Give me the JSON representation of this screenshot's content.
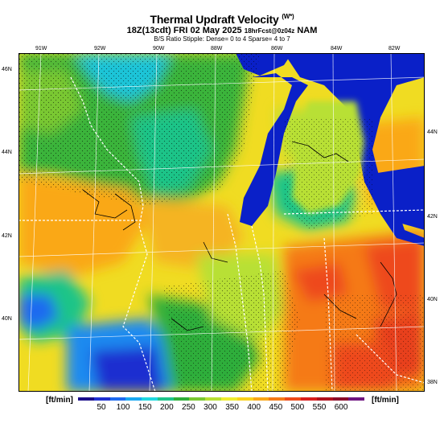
{
  "header": {
    "title": "Thermal Updraft Velocity",
    "title_unit": "(W*)",
    "subtitle_time": "18Z(13cdt) FRI 02 May 2025",
    "subtitle_fcst": "18hrFcst@0z04z",
    "subtitle_model": "NAM",
    "line3": "B/S Ratio Stipple: Dense= 0 to 4  Sparse= 4 to 7"
  },
  "map": {
    "longitudes": [
      "91W",
      "92W",
      "90W",
      "88W",
      "86W",
      "84W",
      "82W"
    ],
    "latitudes": [
      "46N",
      "44N",
      "42N",
      "40N",
      "38N"
    ],
    "right_labels": [
      "44N",
      "42N",
      "40N",
      "38N"
    ]
  },
  "legend": {
    "unit_left": "[ft/min]",
    "unit_right": "[ft/min]",
    "ticks": [
      "50",
      "100",
      "150",
      "200",
      "250",
      "300",
      "350",
      "400",
      "450",
      "500",
      "550",
      "600"
    ],
    "colors": [
      "#1a0f8a",
      "#1f2fd0",
      "#1e6af0",
      "#19a8f2",
      "#20d8e0",
      "#1fc48a",
      "#2fae3a",
      "#7ac832",
      "#b8e034",
      "#f0ee30",
      "#fad21e",
      "#faa818",
      "#f57a18",
      "#ee4a1a",
      "#d81e1e",
      "#b0121e",
      "#8a0c2a",
      "#6e1480"
    ]
  }
}
